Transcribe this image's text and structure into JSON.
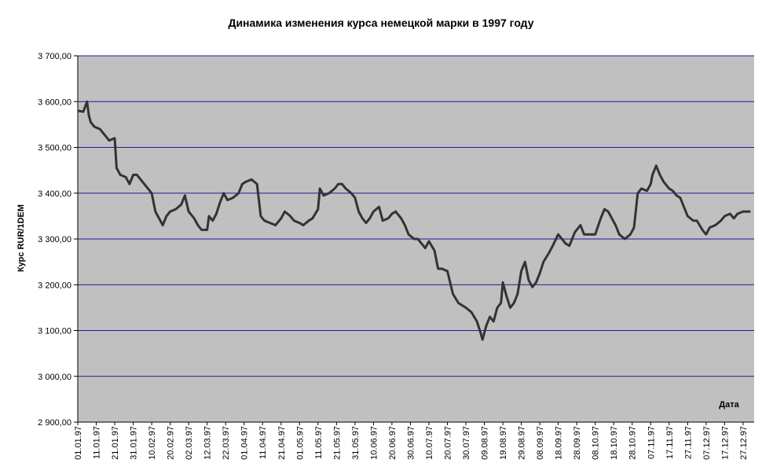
{
  "chart_data": {
    "type": "line",
    "title": "Динамика изменения курса немецкой марки в 1997 году",
    "xlabel": "Дата",
    "ylabel": "Курс RUR/1DEM",
    "ylim": [
      2900,
      3700
    ],
    "y_ticks": [
      "2 900,00",
      "3 000,00",
      "3 100,00",
      "3 200,00",
      "3 300,00",
      "3 400,00",
      "3 500,00",
      "3 600,00",
      "3 700,00"
    ],
    "x_ticks": [
      "01.01.97",
      "11.01.97",
      "21.01.97",
      "31.01.97",
      "10.02.97",
      "20.02.97",
      "02.03.97",
      "12.03.97",
      "22.03.97",
      "01.04.97",
      "11.04.97",
      "21.04.97",
      "01.05.97",
      "11.05.97",
      "21.05.97",
      "31.05.97",
      "10.06.97",
      "20.06.97",
      "30.06.97",
      "10.07.97",
      "20.07.97",
      "30.07.97",
      "09.08.97",
      "19.08.97",
      "29.08.97",
      "08.09.97",
      "18.09.97",
      "28.09.97",
      "08.10.97",
      "18.10.97",
      "28.10.97",
      "07.11.97",
      "17.11.97",
      "27.11.97",
      "07.12.97",
      "17.12.97",
      "27.12.97"
    ],
    "grid": true,
    "plot_background": "#c0c0c0",
    "grid_color": "#1c1c99",
    "line_color": "#333333",
    "series": [
      {
        "x": [
          "01.01.97",
          "04.01.97",
          "06.01.97",
          "07.01.97",
          "08.01.97",
          "10.01.97",
          "13.01.97",
          "16.01.97",
          "18.01.97",
          "21.01.97",
          "22.01.97",
          "24.01.97",
          "27.01.97",
          "29.01.97",
          "31.01.97",
          "02.02.97",
          "05.02.97",
          "08.02.97",
          "10.02.97",
          "12.02.97",
          "14.02.97",
          "16.02.97",
          "18.02.97",
          "20.02.97",
          "23.02.97",
          "26.02.97",
          "28.02.97",
          "02.03.97",
          "05.03.97",
          "07.03.97",
          "09.03.97",
          "12.03.97",
          "13.03.97",
          "15.03.97",
          "17.03.97",
          "19.03.97",
          "21.03.97",
          "23.03.97",
          "26.03.97",
          "29.03.97",
          "31.03.97",
          "02.04.97",
          "05.04.97",
          "08.04.97",
          "10.04.97",
          "12.04.97",
          "15.04.97",
          "18.04.97",
          "21.04.97",
          "23.04.97",
          "26.04.97",
          "28.04.97",
          "01.05.97",
          "03.05.97",
          "06.05.97",
          "08.05.97",
          "11.05.97",
          "12.05.97",
          "14.05.97",
          "17.05.97",
          "20.05.97",
          "22.05.97",
          "24.05.97",
          "26.05.97",
          "29.05.97",
          "31.05.97",
          "02.06.97",
          "04.06.97",
          "06.06.97",
          "08.06.97",
          "10.06.97",
          "13.06.97",
          "15.06.97",
          "18.06.97",
          "20.06.97",
          "22.06.97",
          "25.06.97",
          "27.06.97",
          "29.06.97",
          "02.07.97",
          "04.07.97",
          "06.07.97",
          "08.07.97",
          "10.07.97",
          "13.07.97",
          "15.07.97",
          "17.07.97",
          "20.07.97",
          "23.07.97",
          "26.07.97",
          "28.07.97",
          "30.07.97",
          "02.08.97",
          "05.08.97",
          "07.08.97",
          "08.08.97",
          "10.08.97",
          "12.08.97",
          "14.08.97",
          "16.08.97",
          "18.08.97",
          "19.08.97",
          "21.08.97",
          "23.08.97",
          "25.08.97",
          "27.08.97",
          "29.08.97",
          "31.08.97",
          "02.09.97",
          "04.09.97",
          "06.09.97",
          "08.09.97",
          "10.09.97",
          "13.09.97",
          "15.09.97",
          "18.09.97",
          "20.09.97",
          "22.09.97",
          "24.09.97",
          "27.09.97",
          "30.09.97",
          "02.10.97",
          "05.10.97",
          "08.10.97",
          "11.10.97",
          "13.10.97",
          "15.10.97",
          "17.10.97",
          "19.10.97",
          "21.10.97",
          "24.10.97",
          "27.10.97",
          "29.10.97",
          "31.10.97",
          "02.11.97",
          "05.11.97",
          "07.11.97",
          "08.11.97",
          "10.11.97",
          "12.11.97",
          "14.11.97",
          "17.11.97",
          "19.11.97",
          "21.11.97",
          "23.11.97",
          "25.11.97",
          "27.11.97",
          "30.11.97",
          "02.12.97",
          "05.12.97",
          "07.12.97",
          "09.12.97",
          "12.12.97",
          "15.12.97",
          "17.12.97",
          "20.12.97",
          "22.12.97",
          "24.12.97",
          "27.12.97",
          "30.12.97",
          "31.12.97"
        ],
        "values": [
          3580,
          3578,
          3600,
          3570,
          3555,
          3545,
          3540,
          3525,
          3515,
          3520,
          3455,
          3440,
          3435,
          3420,
          3440,
          3440,
          3425,
          3410,
          3400,
          3360,
          3345,
          3330,
          3350,
          3360,
          3365,
          3375,
          3395,
          3360,
          3345,
          3330,
          3320,
          3320,
          3350,
          3340,
          3355,
          3380,
          3400,
          3385,
          3390,
          3400,
          3420,
          3425,
          3430,
          3420,
          3350,
          3340,
          3335,
          3330,
          3345,
          3360,
          3350,
          3340,
          3335,
          3330,
          3340,
          3345,
          3365,
          3410,
          3395,
          3400,
          3410,
          3420,
          3420,
          3410,
          3400,
          3390,
          3360,
          3345,
          3335,
          3345,
          3360,
          3370,
          3340,
          3345,
          3355,
          3360,
          3345,
          3330,
          3310,
          3300,
          3300,
          3290,
          3280,
          3295,
          3275,
          3235,
          3235,
          3230,
          3180,
          3160,
          3155,
          3150,
          3140,
          3120,
          3095,
          3080,
          3110,
          3130,
          3120,
          3150,
          3160,
          3205,
          3175,
          3150,
          3160,
          3180,
          3230,
          3250,
          3210,
          3195,
          3205,
          3225,
          3250,
          3270,
          3285,
          3310,
          3300,
          3290,
          3285,
          3315,
          3330,
          3310,
          3310,
          3310,
          3345,
          3365,
          3360,
          3345,
          3330,
          3310,
          3300,
          3310,
          3325,
          3400,
          3410,
          3405,
          3420,
          3440,
          3460,
          3440,
          3425,
          3410,
          3405,
          3395,
          3390,
          3370,
          3350,
          3340,
          3340,
          3320,
          3310,
          3325,
          3330,
          3340,
          3350,
          3355,
          3345,
          3355,
          3360,
          3360,
          3360
        ]
      }
    ]
  }
}
